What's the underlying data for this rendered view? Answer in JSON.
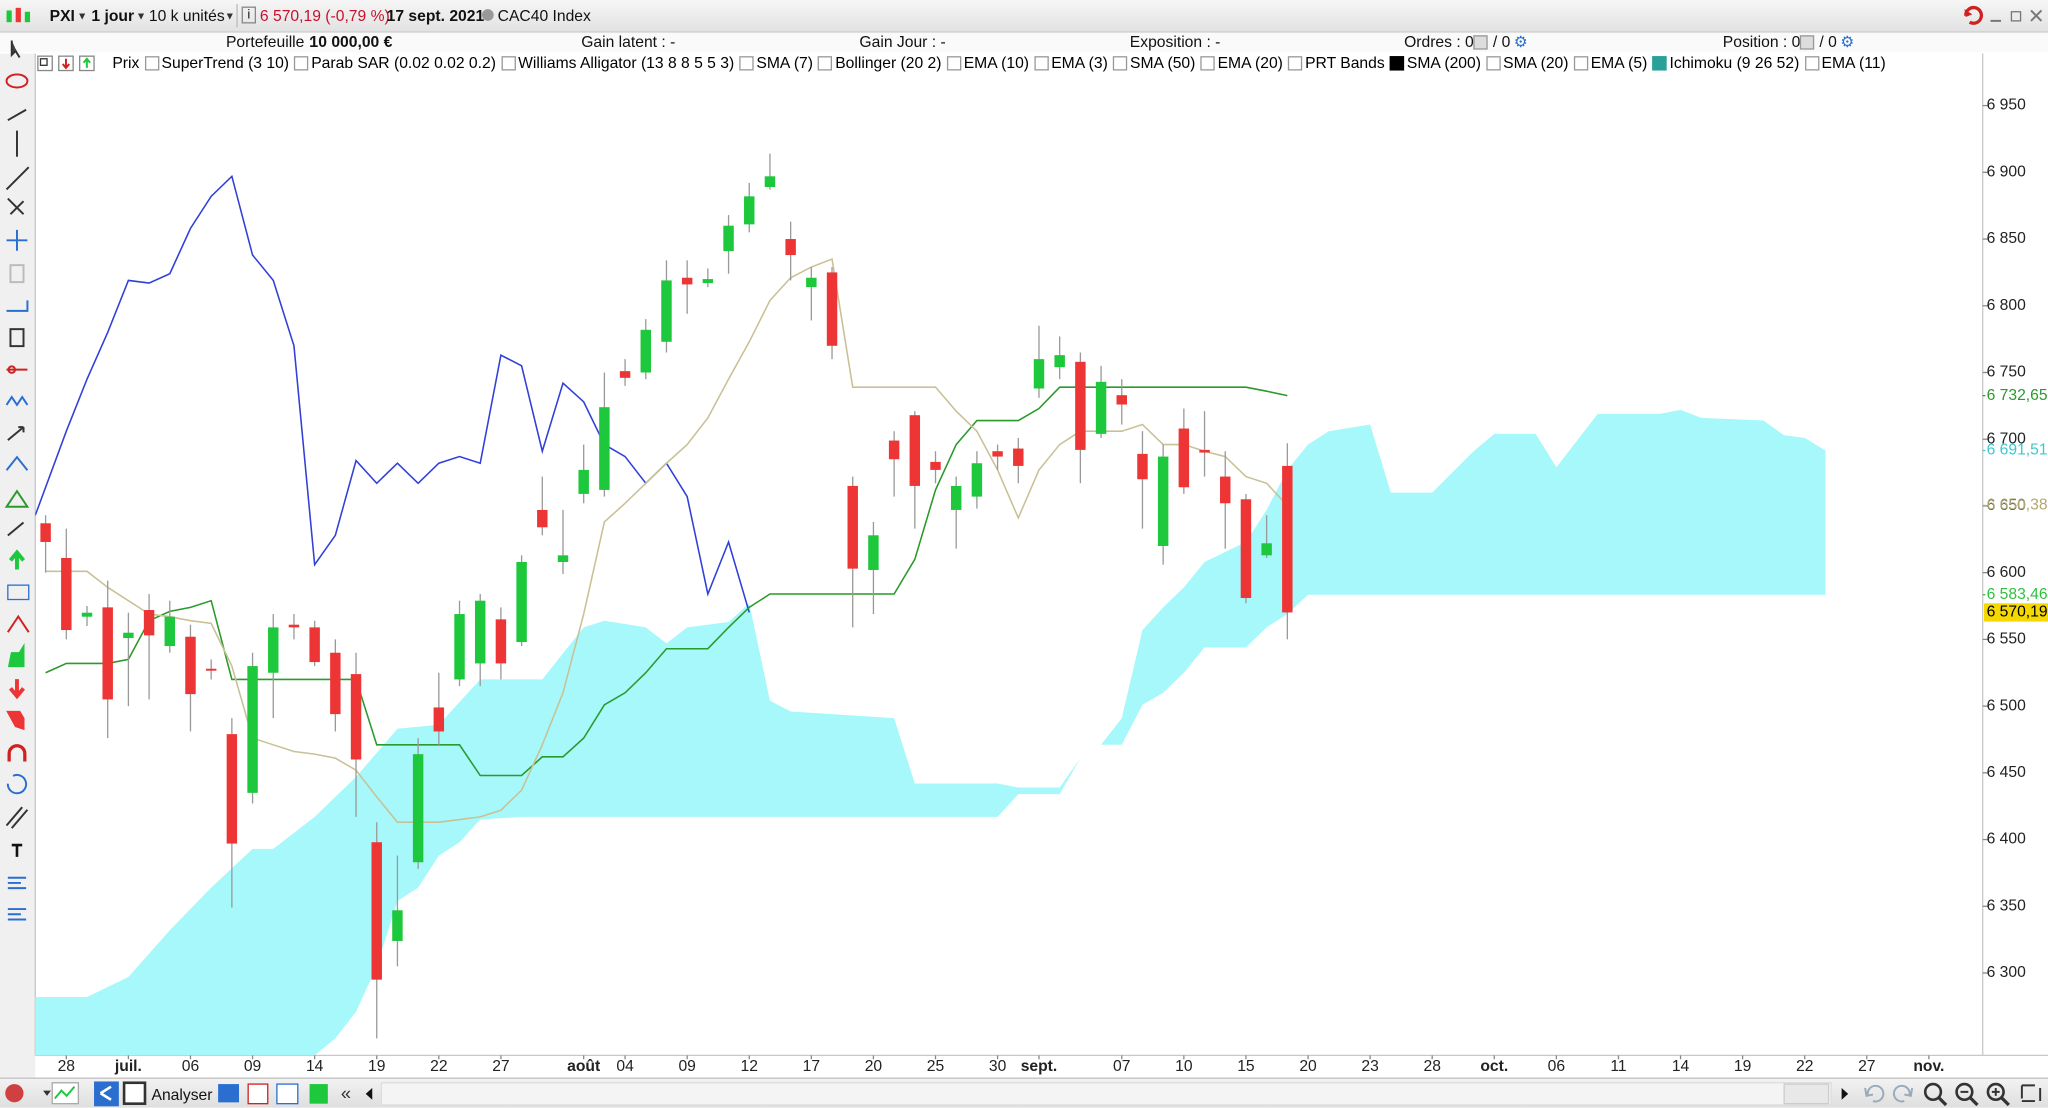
{
  "toolbar": {
    "symbol": "PXI",
    "period": "1 jour",
    "units": "10 k unités",
    "price_change": "6 570,19 (-0,79 %)",
    "date": "17 sept. 2021",
    "instrument": "CAC40 Index"
  },
  "account": {
    "portfolio_label": "Portefeuille :",
    "portfolio_value": "10 000,00 €",
    "unrealized": "Gain latent : -",
    "day_gain": "Gain Jour : -",
    "exposure": "Exposition : -",
    "orders": "Ordres : 0",
    "orders_of": "/ 0",
    "position": "Position : 0",
    "position_of": "/ 0"
  },
  "indicators": [
    {
      "name": "Prix"
    },
    {
      "name": "SuperTrend (3 10)"
    },
    {
      "name": "Parab SAR (0.02 0.02 0.2)"
    },
    {
      "name": "Williams Alligator (13 8 8 5 5 3)"
    },
    {
      "name": "SMA (7)"
    },
    {
      "name": "Bollinger (20 2)"
    },
    {
      "name": "EMA (10)"
    },
    {
      "name": "EMA (3)"
    },
    {
      "name": "SMA (50)"
    },
    {
      "name": "EMA (20)"
    },
    {
      "name": "PRT Bands"
    },
    {
      "name": "SMA (200)",
      "active_color": "#000000"
    },
    {
      "name": "SMA (20)"
    },
    {
      "name": "EMA (5)"
    },
    {
      "name": "Ichimoku (9 26 52)",
      "active_color": "#2aa198"
    },
    {
      "name": "EMA (11)"
    }
  ],
  "bottom_bar": {
    "button": "Analyser"
  },
  "chart_data": {
    "type": "candlestick",
    "x": [
      0,
      1,
      2,
      3,
      4,
      5,
      6,
      7,
      8,
      9,
      10,
      11,
      12,
      13,
      14,
      15,
      16,
      17,
      18,
      19,
      20,
      21,
      22,
      23,
      24,
      25,
      26,
      27,
      28,
      29,
      30,
      31,
      32,
      33,
      34,
      35,
      36,
      37,
      38,
      39,
      40,
      41,
      42,
      43,
      44,
      45,
      46,
      47,
      48,
      49,
      50,
      51,
      52,
      53,
      54,
      55,
      56,
      57,
      58,
      59,
      60
    ],
    "open": [
      6637,
      6611,
      6567,
      6574,
      6551,
      6572,
      6545,
      6552,
      6528,
      6479,
      6435,
      6525,
      6561,
      6559,
      6540,
      6524,
      6398,
      6324,
      6383,
      6499,
      6520,
      6532,
      6565,
      6548,
      6647,
      6608,
      6659,
      6662,
      6751,
      6750,
      6773,
      6821,
      6817,
      6841,
      6861,
      6889,
      6850,
      6814,
      6825,
      6665,
      6602,
      6699,
      6718,
      6683,
      6647,
      6657,
      6691,
      6693,
      6738,
      6754,
      6758,
      6704,
      6733,
      6689,
      6620,
      6708,
      6692,
      6672,
      6655,
      6613,
      6680
    ],
    "high": [
      6643,
      6633,
      6575,
      6594,
      6570,
      6584,
      6579,
      6561,
      6535,
      6491,
      6540,
      6569,
      6569,
      6564,
      6550,
      6540,
      6413,
      6388,
      6476,
      6525,
      6579,
      6584,
      6574,
      6613,
      6672,
      6647,
      6696,
      6750,
      6760,
      6790,
      6834,
      6834,
      6828,
      6868,
      6892,
      6914,
      6863,
      6829,
      6829,
      6672,
      6638,
      6706,
      6721,
      6691,
      6672,
      6691,
      6696,
      6701,
      6785,
      6777,
      6765,
      6755,
      6745,
      6706,
      6696,
      6723,
      6721,
      6691,
      6659,
      6643,
      6697
    ],
    "low": [
      6600,
      6550,
      6560,
      6476,
      6500,
      6505,
      6540,
      6481,
      6520,
      6349,
      6427,
      6491,
      6550,
      6530,
      6481,
      6417,
      6251,
      6305,
      6378,
      6471,
      6515,
      6515,
      6520,
      6545,
      6628,
      6599,
      6652,
      6657,
      6740,
      6745,
      6765,
      6794,
      6814,
      6824,
      6855,
      6887,
      6819,
      6789,
      6760,
      6559,
      6569,
      6657,
      6633,
      6667,
      6618,
      6648,
      6677,
      6667,
      6731,
      6745,
      6667,
      6701,
      6711,
      6633,
      6606,
      6659,
      6672,
      6618,
      6577,
      6611,
      6550
    ],
    "close": [
      6623,
      6557,
      6570,
      6505,
      6555,
      6553,
      6567,
      6509,
      6527,
      6397,
      6530,
      6559,
      6559,
      6533,
      6494,
      6460,
      6295,
      6347,
      6464,
      6481,
      6569,
      6579,
      6532,
      6608,
      6634,
      6613,
      6677,
      6724,
      6746,
      6782,
      6819,
      6816,
      6820,
      6860,
      6882,
      6897,
      6838,
      6821,
      6770,
      6603,
      6628,
      6685,
      6665,
      6677,
      6665,
      6682,
      6687,
      6680,
      6760,
      6763,
      6692,
      6743,
      6726,
      6670,
      6687,
      6664,
      6690,
      6652,
      6581,
      6622,
      6570.19
    ],
    "up_color": "#1ec83c",
    "down_color": "#ee3535",
    "xlim": [
      -0.5,
      93.6
    ],
    "ylim": [
      6238.3,
      6989
    ],
    "yticks": [
      {
        "value": 6300,
        "label": "6 300"
      },
      {
        "value": 6350,
        "label": "6 350"
      },
      {
        "value": 6400,
        "label": "6 400"
      },
      {
        "value": 6450,
        "label": "6 450"
      },
      {
        "value": 6500,
        "label": "6 500"
      },
      {
        "value": 6550,
        "label": "6 550"
      },
      {
        "value": 6600,
        "label": "6 600"
      },
      {
        "value": 6650,
        "label": "6 650"
      },
      {
        "value": 6700,
        "label": "6 700"
      },
      {
        "value": 6750,
        "label": "6 750"
      },
      {
        "value": 6800,
        "label": "6 800"
      },
      {
        "value": 6850,
        "label": "6 850"
      },
      {
        "value": 6900,
        "label": "6 900"
      },
      {
        "value": 6950,
        "label": "6 950"
      }
    ],
    "xticks": [
      {
        "value": 1,
        "label": "28"
      },
      {
        "value": 4,
        "label": "juil."
      },
      {
        "value": 7,
        "label": "06"
      },
      {
        "value": 10,
        "label": "09"
      },
      {
        "value": 13,
        "label": "14"
      },
      {
        "value": 16,
        "label": "19"
      },
      {
        "value": 19,
        "label": "22"
      },
      {
        "value": 22,
        "label": "27"
      },
      {
        "value": 26,
        "label": "août"
      },
      {
        "value": 28,
        "label": "04"
      },
      {
        "value": 31,
        "label": "09"
      },
      {
        "value": 34,
        "label": "12"
      },
      {
        "value": 37,
        "label": "17"
      },
      {
        "value": 40,
        "label": "20"
      },
      {
        "value": 43,
        "label": "25"
      },
      {
        "value": 46,
        "label": "30"
      },
      {
        "value": 48,
        "label": "sept."
      },
      {
        "value": 52,
        "label": "07"
      },
      {
        "value": 55,
        "label": "10"
      },
      {
        "value": 58,
        "label": "15"
      },
      {
        "value": 61,
        "label": "20"
      },
      {
        "value": 64,
        "label": "23"
      },
      {
        "value": 67,
        "label": "28"
      },
      {
        "value": 70,
        "label": "oct."
      },
      {
        "value": 73,
        "label": "06"
      },
      {
        "value": 76,
        "label": "11"
      },
      {
        "value": 79,
        "label": "14"
      },
      {
        "value": 82,
        "label": "19"
      },
      {
        "value": 85,
        "label": "22"
      },
      {
        "value": 88,
        "label": "27"
      },
      {
        "value": 91,
        "label": "nov."
      }
    ],
    "cloud": {
      "color": "#a6f8fa",
      "x_upper": [
        -0.5,
        2,
        4,
        6,
        8,
        10,
        11,
        13,
        15,
        17,
        19,
        21,
        24,
        26,
        27,
        29,
        30,
        31,
        33,
        34,
        35,
        36,
        41,
        42,
        46,
        47,
        49,
        50,
        51,
        52,
        53,
        54,
        55,
        56,
        58,
        59,
        60,
        61,
        62,
        64,
        65,
        67,
        69,
        70,
        72,
        73,
        75,
        78,
        79,
        80,
        83,
        84,
        85,
        86
      ],
      "upper": [
        6282,
        6282,
        6297,
        6332,
        6364,
        6393,
        6393,
        6417,
        6447,
        6483,
        6486,
        6520,
        6520,
        6559,
        6564,
        6559,
        6547,
        6559,
        6563,
        6577,
        6504,
        6496,
        6491,
        6442,
        6442,
        6439,
        6439,
        6461,
        6471,
        6491,
        6557,
        6574,
        6589,
        6608,
        6623,
        6647,
        6677,
        6696,
        6706,
        6711,
        6660,
        6660,
        6691,
        6704,
        6704,
        6679,
        6719,
        6719,
        6722,
        6716,
        6714,
        6703,
        6701,
        6691.51
      ],
      "x_lower": [
        -0.5,
        13,
        14,
        15,
        16,
        17,
        18,
        19,
        20,
        21,
        23,
        46,
        47,
        49,
        50,
        51,
        52,
        53,
        54,
        55,
        56,
        58,
        59,
        60,
        61,
        86
      ],
      "lower": [
        6238.3,
        6238.3,
        6251,
        6271,
        6305,
        6354,
        6364,
        6388,
        6398,
        6415,
        6417,
        6417,
        6434,
        6434,
        6461,
        6471,
        6471,
        6501,
        6510,
        6525,
        6544,
        6544,
        6559,
        6569,
        6583.46,
        6583.46
      ]
    },
    "lines": [
      {
        "color": "#3040d8",
        "x": [
          -0.5,
          1,
          2,
          3,
          4,
          5,
          6,
          7,
          8,
          9,
          10,
          11,
          12,
          13,
          14,
          15,
          16,
          17,
          18,
          19,
          20,
          21,
          22,
          23,
          24,
          25,
          26,
          27,
          28,
          29,
          30,
          31,
          32,
          33,
          34
        ],
        "values": [
          6643,
          6706,
          6745,
          6780,
          6819,
          6817,
          6824,
          6858,
          6882,
          6897,
          6838,
          6819,
          6770,
          6606,
          6628,
          6684,
          6667,
          6682,
          6667,
          6682,
          6687,
          6682,
          6763,
          6755,
          6691,
          6742,
          6728,
          6696,
          6687,
          6667,
          6682,
          6657,
          6584,
          6623,
          6570.19
        ]
      },
      {
        "color": "#2a9a2a",
        "values": [
          6525,
          6532,
          6532,
          6532,
          6535,
          6564,
          6571,
          6574,
          6579,
          6520,
          6520,
          6520,
          6520,
          6520,
          6520,
          6520,
          6471,
          6471,
          6471,
          6471,
          6471,
          6448,
          6448,
          6448,
          6462,
          6462,
          6476,
          6501,
          6510,
          6525,
          6543,
          6543,
          6543,
          6559,
          6574,
          6584,
          6584,
          6584,
          6584,
          6584,
          6584,
          6584,
          6610,
          6662,
          6696,
          6714,
          6714,
          6714,
          6723,
          6739,
          6739,
          6739,
          6739,
          6739,
          6739,
          6739,
          6739,
          6739,
          6739,
          6736,
          6732.65
        ]
      },
      {
        "color": "#c9c196",
        "values": [
          6601,
          6601,
          6601,
          6589,
          6579,
          6569,
          6567,
          6564,
          6562,
          6530,
          6476,
          6471,
          6466,
          6464,
          6461,
          6452,
          6432,
          6413,
          6413,
          6413,
          6415,
          6417,
          6422,
          6437,
          6471,
          6510,
          6569,
          6638,
          6652,
          6667,
          6682,
          6696,
          6716,
          6745,
          6773,
          6804,
          6821,
          6829,
          6835,
          6739,
          6739,
          6739,
          6739,
          6739,
          6721,
          6706,
          6677,
          6641,
          6677,
          6696,
          6706,
          6706,
          6706,
          6711,
          6696,
          6696,
          6691,
          6687,
          6672,
          6667,
          6650.38
        ]
      }
    ],
    "price_labels": [
      {
        "value": 6732.65,
        "label": "6 732,65",
        "color": "#2a9a2a"
      },
      {
        "value": 6691.51,
        "label": "6 691,51",
        "color": "#3cc8d0"
      },
      {
        "value": 6650.38,
        "label": "6 650,38",
        "color": "#b0a870"
      },
      {
        "value": 6583.46,
        "label": "6 583,46",
        "color": "#30c040"
      },
      {
        "value": 6570.19,
        "label": "6 570,19",
        "color": "#000000",
        "background": "#f5d800"
      }
    ]
  }
}
